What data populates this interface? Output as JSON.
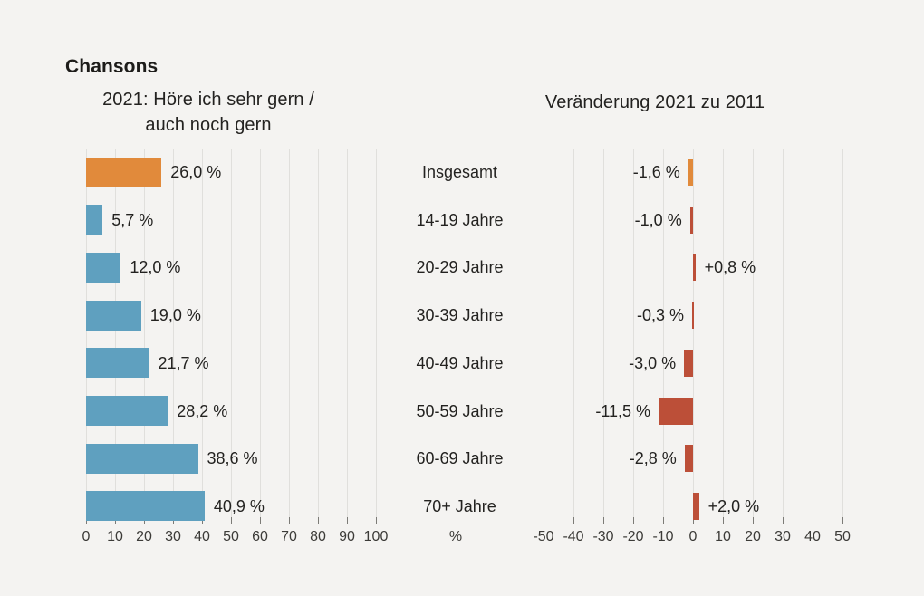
{
  "title": "Chansons",
  "unit_label": "%",
  "colors": {
    "background": "#f4f3f1",
    "grid": "#e0dfdc",
    "axis": "#7c7b77",
    "tick_text": "#3c3b38",
    "text": "#232220",
    "highlight_orange": "#e18a3b",
    "blue": "#5fa0bf",
    "brick_red": "#bc4f38"
  },
  "chart_data": [
    {
      "type": "bar",
      "orientation": "horizontal",
      "title": "2021: Höre ich sehr gern / auch noch gern",
      "title_line1": "2021: Höre ich sehr gern /",
      "title_line2": "auch noch gern",
      "categories": [
        "Insgesamt",
        "14-19 Jahre",
        "20-29 Jahre",
        "30-39 Jahre",
        "40-49 Jahre",
        "50-59 Jahre",
        "60-69 Jahre",
        "70+ Jahre"
      ],
      "values": [
        26.0,
        5.7,
        12.0,
        19.0,
        21.7,
        28.2,
        38.6,
        40.9
      ],
      "value_labels": [
        "26,0 %",
        "5,7 %",
        "12,0 %",
        "19,0 %",
        "21,7 %",
        "28,2 %",
        "38,6 %",
        "40,9 %"
      ],
      "xlim": [
        0,
        100
      ],
      "xticks": [
        0,
        10,
        20,
        30,
        40,
        50,
        60,
        70,
        80,
        90,
        100
      ],
      "unit": "%",
      "grid": true,
      "legend": false,
      "highlight_index": 0,
      "highlight_color": "#e18a3b",
      "bar_color": "#5fa0bf"
    },
    {
      "type": "bar",
      "orientation": "horizontal",
      "title": "Veränderung 2021 zu 2011",
      "categories": [
        "Insgesamt",
        "14-19 Jahre",
        "20-29 Jahre",
        "30-39 Jahre",
        "40-49 Jahre",
        "50-59 Jahre",
        "60-69 Jahre",
        "70+ Jahre"
      ],
      "values": [
        -1.6,
        -1.0,
        0.8,
        -0.3,
        -3.0,
        -11.5,
        -2.8,
        2.0
      ],
      "value_labels": [
        "-1,6 %",
        "-1,0 %",
        "+0,8 %",
        "-0,3 %",
        "-3,0 %",
        "-11,5 %",
        "-2,8 %",
        "+2,0 %"
      ],
      "xlim": [
        -50,
        50
      ],
      "xticks": [
        -50,
        -40,
        -30,
        -20,
        -10,
        0,
        10,
        20,
        30,
        40,
        50
      ],
      "unit": "%",
      "grid": true,
      "legend": false,
      "highlight_index": 0,
      "highlight_color": "#e18a3b",
      "bar_color": "#bc4f38"
    }
  ]
}
